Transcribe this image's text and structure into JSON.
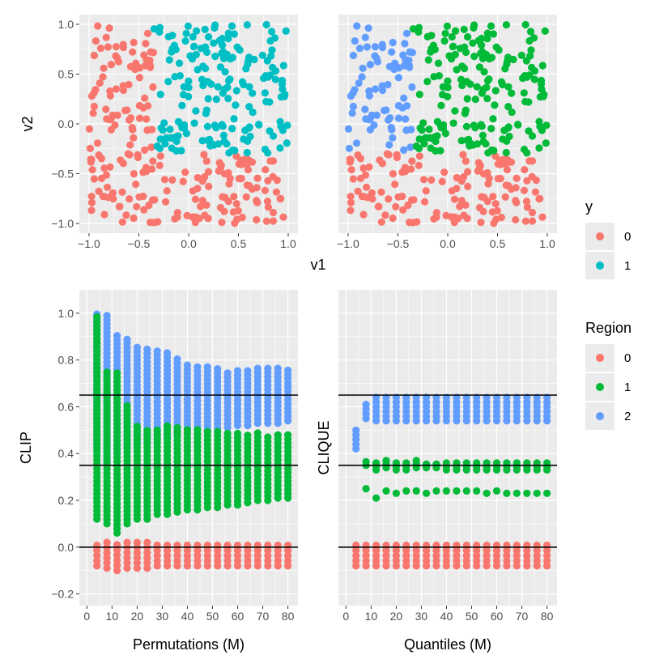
{
  "colors": {
    "red": "#F8766D",
    "teal": "#00BFC4",
    "green": "#00BA38",
    "blue": "#619CFF",
    "panel_bg": "#EBEBEB",
    "grid": "#FFFFFF",
    "hline": "#000000"
  },
  "chart_data": [
    {
      "id": "scatter-y",
      "type": "scatter",
      "xlabel": "v1",
      "ylabel": "v2",
      "xlim": [
        -1.0,
        1.0
      ],
      "ylim": [
        -1.0,
        1.0
      ],
      "x_ticks": [
        "-1.0",
        "-0.5",
        "0.0",
        "0.5",
        "1.0"
      ],
      "y_ticks": [
        "-1.0",
        "-0.5",
        "0.0",
        "0.5",
        "1.0"
      ],
      "color_by": "y",
      "groups": [
        "0",
        "1"
      ],
      "rule": "group 1 if v1 > -0.35 and v2 > -0.3, else group 0",
      "n_points": 400
    },
    {
      "id": "scatter-region",
      "type": "scatter",
      "xlim": [
        -1.0,
        1.0
      ],
      "ylim": [
        -1.0,
        1.0
      ],
      "x_ticks": [
        "-1.0",
        "-0.5",
        "0.0",
        "0.5",
        "1.0"
      ],
      "color_by": "Region",
      "groups": [
        "0",
        "1",
        "2"
      ],
      "rule": "region 0 if v2 < -0.3; region 2 if v1 < -0.35 and v2 >= -0.3; region 1 otherwise",
      "n_points": 400
    },
    {
      "id": "clip",
      "type": "scatter",
      "xlabel": "Permutations (M)",
      "ylabel": "CLIP",
      "x_ticks": [
        "0",
        "10",
        "20",
        "30",
        "40",
        "50",
        "60",
        "70",
        "80"
      ],
      "y_ticks": [
        "-0.2",
        "0.0",
        "0.2",
        "0.4",
        "0.6",
        "0.8",
        "1.0"
      ],
      "xlim": [
        -3,
        84
      ],
      "ylim": [
        -0.25,
        1.1
      ],
      "hlines": [
        0.0,
        0.35,
        0.65
      ],
      "M": [
        4,
        8,
        12,
        16,
        20,
        24,
        28,
        32,
        36,
        40,
        44,
        48,
        52,
        56,
        60,
        64,
        68,
        72,
        76,
        80
      ],
      "series": [
        {
          "name": "0",
          "min": [
            -0.08,
            -0.09,
            -0.1,
            -0.09,
            -0.09,
            -0.09,
            -0.08,
            -0.08,
            -0.08,
            -0.08,
            -0.08,
            -0.08,
            -0.08,
            -0.08,
            -0.08,
            -0.08,
            -0.08,
            -0.08,
            -0.08,
            -0.08
          ],
          "max": [
            0.02,
            0.02,
            0.02,
            0.02,
            0.02,
            0.02,
            0.02,
            0.02,
            0.02,
            0.02,
            0.02,
            0.02,
            0.02,
            0.02,
            0.02,
            0.02,
            0.02,
            0.02,
            0.02,
            0.02
          ]
        },
        {
          "name": "1",
          "min": [
            0.12,
            0.1,
            0.06,
            0.1,
            0.12,
            0.12,
            0.14,
            0.14,
            0.15,
            0.16,
            0.16,
            0.17,
            0.17,
            0.18,
            0.18,
            0.19,
            0.2,
            0.2,
            0.21,
            0.21
          ],
          "max": [
            1.0,
            0.76,
            0.75,
            0.61,
            0.52,
            0.51,
            0.51,
            0.52,
            0.52,
            0.51,
            0.51,
            0.51,
            0.5,
            0.5,
            0.49,
            0.49,
            0.49,
            0.48,
            0.48,
            0.48
          ]
        },
        {
          "name": "2",
          "min": [
            0.42,
            0.36,
            0.4,
            0.42,
            0.44,
            0.45,
            0.46,
            0.47,
            0.48,
            0.49,
            0.5,
            0.5,
            0.51,
            0.51,
            0.52,
            0.52,
            0.53,
            0.53,
            0.53,
            0.54
          ],
          "max": [
            1.0,
            1.0,
            0.92,
            0.89,
            0.87,
            0.86,
            0.85,
            0.83,
            0.81,
            0.78,
            0.77,
            0.77,
            0.77,
            0.76,
            0.76,
            0.77,
            0.77,
            0.77,
            0.77,
            0.76
          ]
        }
      ]
    },
    {
      "id": "clique",
      "type": "scatter",
      "xlabel": "Quantiles (M)",
      "ylabel": "CLIQUE",
      "x_ticks": [
        "0",
        "10",
        "20",
        "30",
        "40",
        "50",
        "60",
        "70",
        "80"
      ],
      "xlim": [
        -3,
        84
      ],
      "ylim": [
        -0.25,
        1.1
      ],
      "hlines": [
        0.0,
        0.35,
        0.65
      ],
      "M": [
        4,
        8,
        12,
        16,
        20,
        24,
        28,
        32,
        36,
        40,
        44,
        48,
        52,
        56,
        60,
        64,
        68,
        72,
        76,
        80
      ],
      "series": [
        {
          "name": "0",
          "min": [
            -0.08,
            -0.08,
            -0.08,
            -0.08,
            -0.08,
            -0.08,
            -0.08,
            -0.08,
            -0.08,
            -0.08,
            -0.08,
            -0.08,
            -0.08,
            -0.08,
            -0.08,
            -0.08,
            -0.08,
            -0.08,
            -0.08,
            -0.08
          ],
          "max": [
            0.02,
            0.02,
            0.02,
            0.02,
            0.02,
            0.02,
            0.02,
            0.02,
            0.02,
            0.02,
            0.02,
            0.02,
            0.02,
            0.02,
            0.02,
            0.02,
            0.02,
            0.02,
            0.02,
            0.02
          ]
        },
        {
          "name": "1",
          "lower": [
            null,
            0.25,
            0.21,
            0.24,
            0.23,
            0.24,
            0.24,
            0.23,
            0.24,
            0.24,
            0.24,
            0.24,
            0.24,
            0.23,
            0.24,
            0.23,
            0.23,
            0.23,
            0.23,
            0.23
          ],
          "upper_min": [
            null,
            0.35,
            0.33,
            0.34,
            0.33,
            0.33,
            0.34,
            0.34,
            0.34,
            0.33,
            0.33,
            0.33,
            0.33,
            0.33,
            0.33,
            0.33,
            0.33,
            0.33,
            0.33,
            0.33
          ],
          "upper_max": [
            null,
            0.37,
            0.36,
            0.37,
            0.36,
            0.37,
            0.37,
            0.36,
            0.36,
            0.36,
            0.36,
            0.36,
            0.36,
            0.36,
            0.36,
            0.36,
            0.36,
            0.36,
            0.36,
            0.36
          ]
        },
        {
          "name": "2",
          "min": [
            0.42,
            0.55,
            0.54,
            0.54,
            0.54,
            0.54,
            0.54,
            0.54,
            0.54,
            0.54,
            0.54,
            0.54,
            0.54,
            0.54,
            0.54,
            0.54,
            0.54,
            0.54,
            0.54,
            0.54
          ],
          "max": [
            0.5,
            0.62,
            0.64,
            0.65,
            0.65,
            0.65,
            0.65,
            0.65,
            0.65,
            0.65,
            0.65,
            0.65,
            0.65,
            0.65,
            0.65,
            0.65,
            0.65,
            0.65,
            0.65,
            0.65
          ]
        }
      ]
    }
  ],
  "shared_labels": {
    "top_xlabel": "v1"
  },
  "legends": [
    {
      "title": "y",
      "items": [
        {
          "label": "0",
          "color": "#F8766D"
        },
        {
          "label": "1",
          "color": "#00BFC4"
        }
      ]
    },
    {
      "title": "Region",
      "items": [
        {
          "label": "0",
          "color": "#F8766D"
        },
        {
          "label": "1",
          "color": "#00BA38"
        },
        {
          "label": "2",
          "color": "#619CFF"
        }
      ]
    }
  ]
}
